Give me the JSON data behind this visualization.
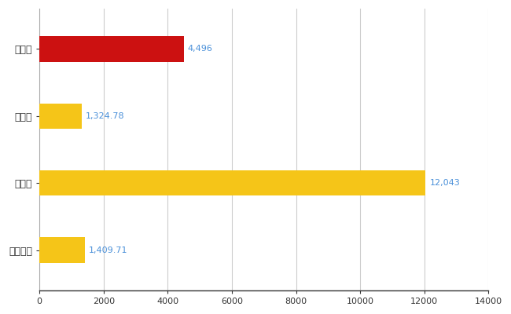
{
  "categories": [
    "所沢市",
    "県平均",
    "県最大",
    "全国平均"
  ],
  "values": [
    4496,
    1324.78,
    12043,
    1409.71
  ],
  "labels": [
    "4,496",
    "1,324.78",
    "12,043",
    "1,409.71"
  ],
  "colors": [
    "#cc1111",
    "#f5c518",
    "#f5c518",
    "#f5c518"
  ],
  "xlim": [
    0,
    14000
  ],
  "xticks": [
    0,
    2000,
    4000,
    6000,
    8000,
    10000,
    12000,
    14000
  ],
  "label_color": "#4a90d9",
  "label_fontsize": 8,
  "tick_fontsize": 8,
  "ytick_fontsize": 9,
  "bar_height": 0.38,
  "grid_color": "#cccccc",
  "bg_color": "#ffffff"
}
